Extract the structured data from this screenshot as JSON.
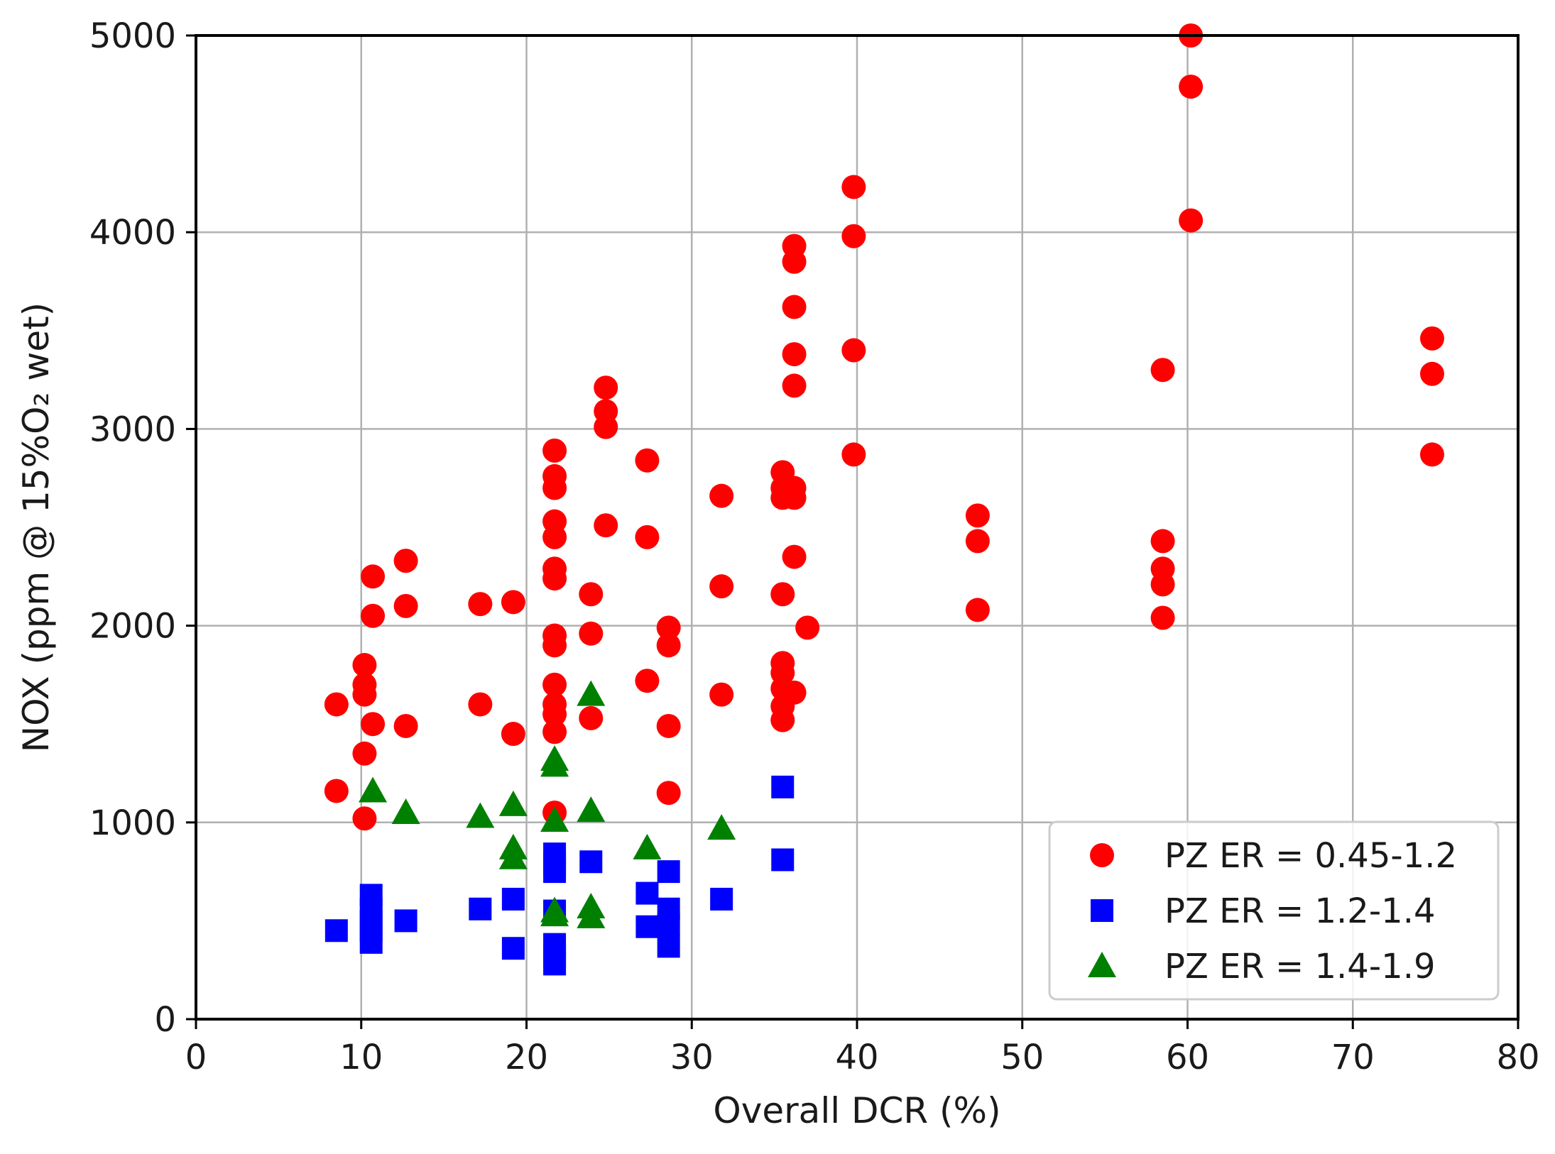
{
  "chart_data": {
    "type": "scatter",
    "xlabel": "Overall DCR (%)",
    "ylabel": "NOX (ppm @ 15%O₂ wet)",
    "xlim": [
      0,
      80
    ],
    "ylim": [
      0,
      5000
    ],
    "x_ticks": [
      "0",
      "10",
      "20",
      "30",
      "40",
      "50",
      "60",
      "70",
      "80"
    ],
    "y_ticks": [
      "0",
      "1000",
      "2000",
      "3000",
      "4000",
      "5000"
    ],
    "grid": true,
    "legend_position": "lower-right",
    "series": [
      {
        "name": "PZ ER = 0.45-1.2",
        "marker": "circle",
        "color": "#ff0000",
        "points": [
          [
            8.5,
            1600
          ],
          [
            8.5,
            1160
          ],
          [
            10.2,
            1800
          ],
          [
            10.2,
            1700
          ],
          [
            10.2,
            1650
          ],
          [
            10.2,
            1350
          ],
          [
            10.2,
            1020
          ],
          [
            10.7,
            2250
          ],
          [
            10.7,
            2050
          ],
          [
            10.7,
            1500
          ],
          [
            12.7,
            2330
          ],
          [
            12.7,
            2100
          ],
          [
            12.7,
            1490
          ],
          [
            17.2,
            2110
          ],
          [
            17.2,
            1600
          ],
          [
            19.2,
            2120
          ],
          [
            19.2,
            1450
          ],
          [
            21.7,
            2890
          ],
          [
            21.7,
            2760
          ],
          [
            21.7,
            2700
          ],
          [
            21.7,
            2530
          ],
          [
            21.7,
            2450
          ],
          [
            21.7,
            2290
          ],
          [
            21.7,
            2240
          ],
          [
            21.7,
            1950
          ],
          [
            21.7,
            1900
          ],
          [
            21.7,
            1700
          ],
          [
            21.7,
            1600
          ],
          [
            21.7,
            1550
          ],
          [
            21.7,
            1460
          ],
          [
            21.7,
            1050
          ],
          [
            23.9,
            2160
          ],
          [
            23.9,
            1960
          ],
          [
            23.9,
            1530
          ],
          [
            24.8,
            3210
          ],
          [
            24.8,
            3090
          ],
          [
            24.8,
            3010
          ],
          [
            24.8,
            2510
          ],
          [
            27.3,
            2840
          ],
          [
            27.3,
            2450
          ],
          [
            27.3,
            1720
          ],
          [
            28.6,
            1990
          ],
          [
            28.6,
            1900
          ],
          [
            28.6,
            1490
          ],
          [
            28.6,
            1150
          ],
          [
            31.8,
            2660
          ],
          [
            31.8,
            2200
          ],
          [
            31.8,
            1650
          ],
          [
            35.5,
            2780
          ],
          [
            35.5,
            2700
          ],
          [
            35.5,
            2650
          ],
          [
            35.5,
            2160
          ],
          [
            35.5,
            1810
          ],
          [
            35.5,
            1760
          ],
          [
            35.5,
            1680
          ],
          [
            35.5,
            1590
          ],
          [
            35.5,
            1520
          ],
          [
            36.2,
            3930
          ],
          [
            36.2,
            3850
          ],
          [
            36.2,
            3620
          ],
          [
            36.2,
            3380
          ],
          [
            36.2,
            3220
          ],
          [
            36.2,
            2700
          ],
          [
            36.2,
            2650
          ],
          [
            36.2,
            2350
          ],
          [
            36.2,
            1660
          ],
          [
            37.0,
            1990
          ],
          [
            39.8,
            4230
          ],
          [
            39.8,
            3980
          ],
          [
            39.8,
            3400
          ],
          [
            39.8,
            2870
          ],
          [
            47.3,
            2560
          ],
          [
            47.3,
            2430
          ],
          [
            47.3,
            2080
          ],
          [
            58.5,
            3300
          ],
          [
            58.5,
            2430
          ],
          [
            58.5,
            2290
          ],
          [
            58.5,
            2210
          ],
          [
            58.5,
            2040
          ],
          [
            60.2,
            5000
          ],
          [
            60.2,
            4740
          ],
          [
            60.2,
            4060
          ],
          [
            74.8,
            3460
          ],
          [
            74.8,
            3280
          ],
          [
            74.8,
            2870
          ]
        ]
      },
      {
        "name": "PZ ER = 1.2-1.4",
        "marker": "square",
        "color": "#0000ff",
        "points": [
          [
            8.5,
            450
          ],
          [
            10.6,
            630
          ],
          [
            10.6,
            560
          ],
          [
            10.6,
            500
          ],
          [
            10.6,
            450
          ],
          [
            10.6,
            390
          ],
          [
            12.7,
            500
          ],
          [
            17.2,
            560
          ],
          [
            19.2,
            610
          ],
          [
            19.2,
            360
          ],
          [
            21.7,
            840
          ],
          [
            21.7,
            790
          ],
          [
            21.7,
            750
          ],
          [
            21.7,
            550
          ],
          [
            21.7,
            380
          ],
          [
            21.7,
            320
          ],
          [
            21.7,
            280
          ],
          [
            23.9,
            800
          ],
          [
            27.3,
            640
          ],
          [
            27.3,
            470
          ],
          [
            28.6,
            750
          ],
          [
            28.6,
            560
          ],
          [
            28.6,
            480
          ],
          [
            28.6,
            370
          ],
          [
            31.8,
            610
          ],
          [
            35.5,
            1180
          ],
          [
            35.5,
            810
          ]
        ]
      },
      {
        "name": "PZ ER = 1.4-1.9",
        "marker": "triangle",
        "color": "#008000",
        "points": [
          [
            10.7,
            1160
          ],
          [
            12.7,
            1050
          ],
          [
            17.2,
            1030
          ],
          [
            19.2,
            1090
          ],
          [
            19.2,
            870
          ],
          [
            19.2,
            820
          ],
          [
            21.7,
            1320
          ],
          [
            21.7,
            1290
          ],
          [
            21.7,
            1010
          ],
          [
            21.7,
            550
          ],
          [
            21.7,
            530
          ],
          [
            23.9,
            1650
          ],
          [
            23.9,
            1060
          ],
          [
            23.9,
            570
          ],
          [
            23.9,
            520
          ],
          [
            27.3,
            870
          ],
          [
            31.8,
            970
          ]
        ]
      }
    ]
  }
}
